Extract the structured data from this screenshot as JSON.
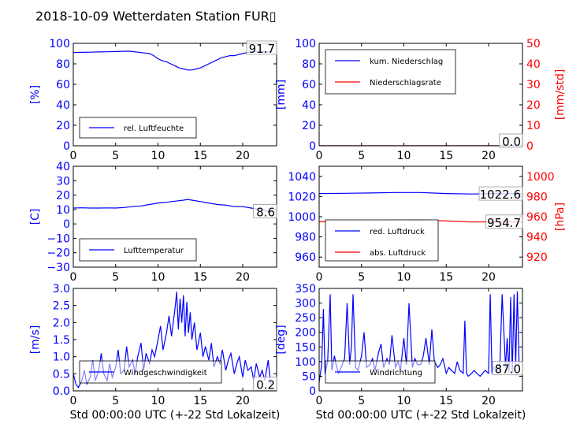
{
  "title": "2018-10-09 Wetterdaten Station FUR▯",
  "colors": {
    "left_axis": "#0000ff",
    "right_axis": "#ff0000",
    "series_blue": "#0000ff",
    "series_red": "#ff0000",
    "series_lightblue": "#8080ff"
  },
  "chart_data": [
    {
      "id": "humidity",
      "type": "line",
      "ylabel": "[%]",
      "xlabel": "",
      "xlim": [
        0,
        24
      ],
      "ylim": [
        0,
        100
      ],
      "xticks": [
        "0",
        "5",
        "10",
        "15",
        "20"
      ],
      "yticks": [
        "0",
        "20",
        "40",
        "60",
        "80",
        "100"
      ],
      "legend_loc": "lower-left",
      "value_label": "91.7",
      "series": [
        {
          "name": "rel. Luftfeuchte",
          "color": "#0000ff",
          "x": [
            0,
            1,
            2,
            3,
            4,
            5,
            6,
            6.5,
            7,
            8,
            9,
            9.5,
            10,
            10.5,
            11,
            11.5,
            12,
            12.5,
            13,
            13.5,
            14,
            14.5,
            15,
            15.5,
            16,
            16.5,
            17,
            17.5,
            18,
            18.5,
            19,
            19.5,
            20,
            20.5,
            21,
            21.5,
            22,
            22.5,
            23,
            23.5
          ],
          "y": [
            91,
            91.2,
            91.4,
            91.6,
            91.8,
            92,
            92.2,
            92.4,
            92,
            91,
            90,
            88,
            85,
            83,
            82,
            80,
            78,
            76,
            75,
            74,
            74,
            75,
            76,
            78,
            80,
            82,
            84,
            86,
            87,
            88,
            88,
            89,
            90,
            91,
            91.4,
            91.6,
            91.7,
            91.7,
            91.7,
            91.7
          ]
        }
      ]
    },
    {
      "id": "precip",
      "type": "line",
      "ylabel": "[mm]",
      "ylabel_right": "[mm/std]",
      "xlabel": "",
      "xlim": [
        0,
        24
      ],
      "ylim": [
        0,
        100
      ],
      "ylim_right": [
        0,
        50
      ],
      "xticks": [
        "0",
        "5",
        "10",
        "15",
        "20"
      ],
      "yticks": [
        "0",
        "20",
        "40",
        "60",
        "80",
        "100"
      ],
      "yticks_right": [
        "0",
        "10",
        "20",
        "30",
        "40",
        "50"
      ],
      "legend_loc": "upper-left",
      "value_label": "0.0",
      "series": [
        {
          "name": "kum. Niederschlag",
          "color": "#0000ff",
          "axis": "left",
          "x": [
            0,
            24
          ],
          "y": [
            0,
            0
          ]
        },
        {
          "name": "Niederschlagsrate",
          "color": "#ff0000",
          "axis": "right",
          "x": [
            0,
            24
          ],
          "y": [
            0,
            0
          ]
        }
      ]
    },
    {
      "id": "temperature",
      "type": "line",
      "ylabel": "[C]",
      "xlabel": "",
      "xlim": [
        0,
        24
      ],
      "ylim": [
        -30,
        40
      ],
      "xticks": [
        "0",
        "5",
        "10",
        "15",
        "20"
      ],
      "yticks": [
        "−30",
        "−20",
        "−10",
        "0",
        "10",
        "20",
        "30",
        "40"
      ],
      "legend_loc": "lower-left",
      "value_label": "8.6",
      "series": [
        {
          "name": "Lufttemperatur",
          "color": "#0000ff",
          "x": [
            0,
            1,
            2,
            3,
            4,
            5,
            6,
            7,
            8,
            9,
            10,
            11,
            12,
            13,
            13.5,
            14,
            15,
            16,
            17,
            18,
            19,
            20,
            21,
            22,
            23,
            23.5
          ],
          "y": [
            11,
            11.2,
            11,
            11,
            11.1,
            11,
            11.4,
            12,
            12.5,
            13.5,
            14.5,
            15,
            15.8,
            16.5,
            17,
            16.5,
            15.5,
            14.5,
            13.5,
            13,
            12,
            12,
            11,
            10,
            8.8,
            8.6
          ]
        }
      ]
    },
    {
      "id": "pressure",
      "type": "line",
      "ylabel": "",
      "ylabel_right": "[hPa]",
      "xlabel": "",
      "xlim": [
        0,
        24
      ],
      "ylim": [
        950,
        1050
      ],
      "ylim_right": [
        910,
        1010
      ],
      "xticks": [
        "0",
        "5",
        "10",
        "15",
        "20"
      ],
      "yticks": [
        "960",
        "980",
        "1000",
        "1020",
        "1040"
      ],
      "yticks_right": [
        "920",
        "940",
        "960",
        "980",
        "1000"
      ],
      "legend_loc": "lower-left",
      "value_labels": [
        "1022.6",
        "954.7"
      ],
      "series": [
        {
          "name": "red. Luftdruck",
          "color": "#0000ff",
          "axis": "left",
          "x": [
            0,
            3,
            6,
            9,
            12,
            15,
            18,
            21,
            24
          ],
          "y": [
            1023,
            1023.2,
            1023.5,
            1024,
            1024,
            1023,
            1022.5,
            1023,
            1022.6
          ]
        },
        {
          "name": "abs. Luftdruck",
          "color": "#ff0000",
          "axis": "right",
          "x": [
            0,
            3,
            6,
            9,
            12,
            15,
            18,
            21,
            24
          ],
          "y": [
            955,
            955.4,
            956,
            956.6,
            956.8,
            955.8,
            954.8,
            955,
            954.7
          ]
        }
      ]
    },
    {
      "id": "windspeed",
      "type": "line",
      "ylabel": "[m/s]",
      "xlabel": "Std 00:00:00 UTC (+-22 Std Lokalzeit)",
      "xlim": [
        0,
        24
      ],
      "ylim": [
        0,
        3
      ],
      "xticks": [
        "0",
        "5",
        "10",
        "15",
        "20"
      ],
      "yticks": [
        "0.0",
        "0.5",
        "1.0",
        "1.5",
        "2.0",
        "2.5",
        "3.0"
      ],
      "legend_loc": "lower-left",
      "value_label": "0.2",
      "series": [
        {
          "name": "Windgeschwindigkeit",
          "color": "#0000ff",
          "x": [
            0,
            0.3,
            0.6,
            1,
            1.3,
            1.6,
            2,
            2.3,
            2.6,
            3,
            3.3,
            3.6,
            4,
            4.3,
            4.6,
            5,
            5.3,
            5.6,
            6,
            6.3,
            6.6,
            7,
            7.3,
            7.6,
            8,
            8.3,
            8.6,
            9,
            9.3,
            9.6,
            10,
            10.3,
            10.6,
            11,
            11.3,
            11.6,
            12,
            12.2,
            12.4,
            12.6,
            12.8,
            13,
            13.2,
            13.4,
            13.6,
            13.8,
            14,
            14.3,
            14.6,
            15,
            15.3,
            15.6,
            16,
            16.3,
            16.6,
            17,
            17.3,
            17.6,
            18,
            18.3,
            18.6,
            19,
            19.3,
            19.6,
            20,
            20.3,
            20.6,
            21,
            21.3,
            21.6,
            22,
            22.3,
            22.6,
            23,
            23.3,
            23.6
          ],
          "y": [
            0.5,
            0.2,
            0.1,
            0.3,
            0.6,
            0.2,
            0.4,
            0.9,
            0.3,
            0.6,
            1.1,
            0.5,
            0.3,
            0.8,
            0.4,
            0.7,
            1.2,
            0.5,
            0.6,
            1.3,
            0.7,
            0.9,
            0.5,
            1.0,
            1.4,
            0.6,
            1.1,
            0.8,
            1.2,
            1.0,
            1.5,
            1.9,
            1.2,
            1.7,
            2.2,
            1.6,
            2.4,
            2.9,
            1.8,
            2.7,
            2.0,
            2.8,
            1.6,
            2.6,
            1.7,
            2.3,
            1.5,
            2.0,
            1.2,
            1.7,
            1.0,
            1.3,
            0.9,
            1.4,
            0.7,
            1.0,
            0.8,
            1.2,
            0.6,
            0.9,
            1.1,
            0.5,
            0.8,
            1.0,
            0.4,
            0.9,
            0.6,
            0.7,
            0.3,
            0.8,
            0.4,
            0.6,
            0.3,
            0.9,
            0.2,
            0.2
          ]
        }
      ]
    },
    {
      "id": "winddir",
      "type": "line",
      "ylabel": "[deg]",
      "xlabel": "Std 00:00:00 UTC (+-22 Std Lokalzeit)",
      "xlim": [
        0,
        24
      ],
      "ylim": [
        0,
        350
      ],
      "xticks": [
        "0",
        "5",
        "10",
        "15",
        "20"
      ],
      "yticks": [
        "0",
        "50",
        "100",
        "150",
        "200",
        "250",
        "300",
        "350"
      ],
      "legend_loc": "lower-left",
      "value_label": "87.0",
      "series": [
        {
          "name": "Windrichtung",
          "color": "#0000ff",
          "x": [
            0,
            0.3,
            0.5,
            0.7,
            1,
            1.3,
            1.5,
            1.8,
            2,
            2.3,
            2.6,
            3,
            3.3,
            3.6,
            3.8,
            4,
            4.3,
            4.6,
            5,
            5.3,
            5.6,
            6,
            6.3,
            6.6,
            7,
            7.3,
            7.6,
            8,
            8.3,
            8.6,
            9,
            9.3,
            9.6,
            10,
            10.3,
            10.6,
            11,
            11.3,
            11.6,
            12,
            12.3,
            12.6,
            13,
            13.3,
            13.6,
            14,
            14.3,
            14.6,
            15,
            15.3,
            15.6,
            16,
            16.3,
            16.6,
            17,
            17.2,
            17.4,
            17.6,
            18,
            18.3,
            18.6,
            19,
            19.3,
            19.6,
            20,
            20.2,
            20.4,
            20.6,
            21,
            21.3,
            21.6,
            22,
            22.2,
            22.4,
            22.6,
            22.8,
            23,
            23.2,
            23.4,
            23.6
          ],
          "y": [
            30,
            90,
            280,
            60,
            100,
            330,
            70,
            120,
            90,
            60,
            80,
            110,
            300,
            90,
            150,
            330,
            80,
            70,
            120,
            200,
            80,
            90,
            110,
            70,
            130,
            160,
            80,
            110,
            90,
            190,
            80,
            100,
            70,
            180,
            90,
            300,
            80,
            110,
            90,
            90,
            120,
            180,
            90,
            210,
            100,
            80,
            90,
            110,
            60,
            80,
            70,
            60,
            100,
            70,
            60,
            240,
            60,
            50,
            60,
            70,
            60,
            50,
            60,
            70,
            60,
            330,
            60,
            80,
            70,
            60,
            330,
            80,
            180,
            60,
            320,
            60,
            330,
            90,
            340,
            87
          ]
        }
      ]
    }
  ]
}
